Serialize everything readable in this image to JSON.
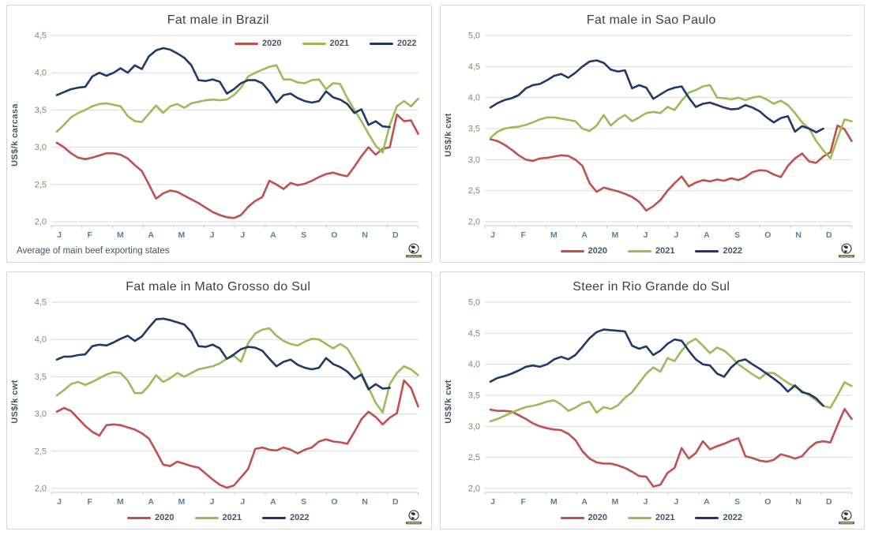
{
  "months": [
    "J",
    "F",
    "M",
    "A",
    "M",
    "J",
    "J",
    "A",
    "S",
    "O",
    "N",
    "D"
  ],
  "colors": {
    "red": "#c0504d",
    "green": "#9bbb59",
    "navy": "#1f3a68",
    "grid": "#d9d9d9",
    "axis": "#c9c9c9",
    "tick_label": "#9a7b70",
    "month_label": "#5f7d9c",
    "title": "#3f3f3f",
    "legend_text": "#44546a"
  },
  "icons": {
    "logo": "globe-logo"
  },
  "chart_data": [
    {
      "type": "line",
      "title": "Fat male in Brazil",
      "ylabel": "US$/k carcasa",
      "ylim": [
        2.0,
        4.5
      ],
      "yticks": [
        2.0,
        2.5,
        3.0,
        3.5,
        4.0,
        4.5
      ],
      "grid": "horizontal",
      "legend_position": "top-right-inside",
      "footnote": "Average  of main beef exporting states",
      "series": [
        {
          "name": "2020",
          "color_key": "red",
          "values": [
            3.06,
            3.0,
            2.92,
            2.86,
            2.84,
            2.86,
            2.89,
            2.92,
            2.92,
            2.9,
            2.85,
            2.76,
            2.68,
            2.5,
            2.31,
            2.38,
            2.42,
            2.4,
            2.35,
            2.3,
            2.25,
            2.19,
            2.13,
            2.09,
            2.06,
            2.05,
            2.09,
            2.2,
            2.28,
            2.33,
            2.55,
            2.5,
            2.44,
            2.52,
            2.49,
            2.51,
            2.55,
            2.6,
            2.64,
            2.66,
            2.63,
            2.61,
            2.74,
            2.88,
            3.0,
            2.9,
            2.98,
            3.0,
            3.44,
            3.35,
            3.36,
            3.18
          ]
        },
        {
          "name": "2021",
          "color_key": "green",
          "values": [
            3.21,
            3.3,
            3.4,
            3.46,
            3.5,
            3.55,
            3.58,
            3.59,
            3.57,
            3.55,
            3.42,
            3.35,
            3.34,
            3.45,
            3.56,
            3.46,
            3.55,
            3.58,
            3.53,
            3.59,
            3.61,
            3.63,
            3.64,
            3.63,
            3.64,
            3.7,
            3.8,
            3.95,
            4.0,
            4.04,
            4.08,
            4.1,
            3.91,
            3.91,
            3.87,
            3.86,
            3.9,
            3.91,
            3.78,
            3.86,
            3.85,
            3.66,
            3.5,
            3.35,
            3.18,
            3.02,
            2.93,
            3.3,
            3.55,
            3.62,
            3.55,
            3.65
          ]
        },
        {
          "name": "2022",
          "color_key": "navy",
          "values": [
            3.7,
            3.74,
            3.78,
            3.8,
            3.81,
            3.95,
            4.0,
            3.96,
            4.0,
            4.06,
            4.0,
            4.1,
            4.05,
            4.22,
            4.3,
            4.33,
            4.31,
            4.26,
            4.2,
            4.1,
            3.9,
            3.89,
            3.91,
            3.88,
            3.72,
            3.78,
            3.86,
            3.9,
            3.9,
            3.86,
            3.75,
            3.6,
            3.7,
            3.72,
            3.66,
            3.62,
            3.6,
            3.62,
            3.75,
            3.67,
            3.64,
            3.58,
            3.46,
            3.51,
            3.3,
            3.35,
            3.28,
            3.27
          ]
        }
      ]
    },
    {
      "type": "line",
      "title": "Fat male in Sao Paulo",
      "ylabel": "US$/k cwt",
      "ylim": [
        2.0,
        5.0
      ],
      "yticks": [
        2.0,
        2.5,
        3.0,
        3.5,
        4.0,
        4.5,
        5.0
      ],
      "grid": "horizontal",
      "legend_position": "bottom",
      "series": [
        {
          "name": "2020",
          "color_key": "red",
          "values": [
            3.33,
            3.3,
            3.24,
            3.16,
            3.07,
            3.0,
            2.98,
            3.02,
            3.03,
            3.05,
            3.07,
            3.06,
            3.0,
            2.9,
            2.62,
            2.48,
            2.55,
            2.52,
            2.49,
            2.45,
            2.4,
            2.32,
            2.18,
            2.25,
            2.35,
            2.5,
            2.62,
            2.73,
            2.57,
            2.63,
            2.67,
            2.65,
            2.68,
            2.66,
            2.7,
            2.67,
            2.72,
            2.8,
            2.83,
            2.82,
            2.76,
            2.72,
            2.9,
            3.02,
            3.1,
            2.97,
            2.95,
            3.05,
            3.12,
            3.55,
            3.49,
            3.3
          ]
        },
        {
          "name": "2021",
          "color_key": "green",
          "values": [
            3.35,
            3.45,
            3.5,
            3.52,
            3.53,
            3.56,
            3.6,
            3.65,
            3.68,
            3.68,
            3.66,
            3.64,
            3.62,
            3.5,
            3.46,
            3.55,
            3.72,
            3.55,
            3.65,
            3.72,
            3.62,
            3.68,
            3.75,
            3.77,
            3.75,
            3.85,
            3.8,
            3.95,
            4.08,
            4.12,
            4.18,
            4.2,
            4.0,
            3.99,
            3.97,
            4.0,
            3.96,
            4.0,
            4.02,
            3.97,
            3.9,
            3.95,
            3.88,
            3.75,
            3.6,
            3.5,
            3.3,
            3.15,
            3.02,
            3.35,
            3.65,
            3.62
          ]
        },
        {
          "name": "2022",
          "color_key": "navy",
          "values": [
            3.84,
            3.91,
            3.96,
            3.99,
            4.04,
            4.15,
            4.2,
            4.22,
            4.28,
            4.35,
            4.38,
            4.32,
            4.4,
            4.5,
            4.58,
            4.6,
            4.56,
            4.45,
            4.42,
            4.44,
            4.15,
            4.2,
            4.16,
            3.98,
            4.05,
            4.12,
            4.16,
            4.18,
            4.0,
            3.85,
            3.9,
            3.92,
            3.88,
            3.84,
            3.81,
            3.82,
            3.88,
            3.84,
            3.78,
            3.68,
            3.6,
            3.67,
            3.7,
            3.45,
            3.54,
            3.5,
            3.44,
            3.5
          ]
        }
      ]
    },
    {
      "type": "line",
      "title": "Fat male in Mato Grosso do Sul",
      "ylabel": "US$/k cwt",
      "ylim": [
        2.0,
        4.5
      ],
      "yticks": [
        2.0,
        2.5,
        3.0,
        3.5,
        4.0,
        4.5
      ],
      "grid": "horizontal",
      "legend_position": "bottom",
      "series": [
        {
          "name": "2020",
          "color_key": "red",
          "values": [
            3.03,
            3.08,
            3.04,
            2.94,
            2.84,
            2.76,
            2.71,
            2.85,
            2.86,
            2.85,
            2.82,
            2.79,
            2.74,
            2.67,
            2.5,
            2.32,
            2.3,
            2.36,
            2.33,
            2.3,
            2.28,
            2.2,
            2.12,
            2.05,
            2.01,
            2.04,
            2.15,
            2.26,
            2.53,
            2.55,
            2.52,
            2.51,
            2.55,
            2.52,
            2.47,
            2.52,
            2.55,
            2.63,
            2.66,
            2.63,
            2.62,
            2.6,
            2.76,
            2.93,
            3.03,
            2.96,
            2.86,
            2.95,
            3.01,
            3.45,
            3.35,
            3.1
          ]
        },
        {
          "name": "2021",
          "color_key": "green",
          "values": [
            3.25,
            3.32,
            3.4,
            3.43,
            3.39,
            3.43,
            3.48,
            3.53,
            3.56,
            3.55,
            3.45,
            3.28,
            3.28,
            3.38,
            3.52,
            3.43,
            3.48,
            3.55,
            3.5,
            3.55,
            3.6,
            3.62,
            3.64,
            3.68,
            3.74,
            3.78,
            3.7,
            3.95,
            4.08,
            4.13,
            4.15,
            4.05,
            3.98,
            3.94,
            3.92,
            3.97,
            4.01,
            4.0,
            3.94,
            3.88,
            3.94,
            3.88,
            3.72,
            3.55,
            3.35,
            3.15,
            3.02,
            3.4,
            3.55,
            3.64,
            3.6,
            3.52
          ]
        },
        {
          "name": "2022",
          "color_key": "navy",
          "values": [
            3.73,
            3.77,
            3.77,
            3.79,
            3.8,
            3.91,
            3.93,
            3.92,
            3.96,
            4.01,
            4.05,
            3.98,
            4.04,
            4.16,
            4.27,
            4.28,
            4.26,
            4.23,
            4.2,
            4.1,
            3.91,
            3.9,
            3.93,
            3.88,
            3.74,
            3.8,
            3.87,
            3.9,
            3.89,
            3.85,
            3.74,
            3.64,
            3.7,
            3.73,
            3.66,
            3.62,
            3.6,
            3.62,
            3.75,
            3.67,
            3.63,
            3.57,
            3.47,
            3.53,
            3.33,
            3.4,
            3.34,
            3.35
          ]
        }
      ]
    },
    {
      "type": "line",
      "title": "Steer  in Rio Grande do Sul",
      "ylabel": "US$/k cwt",
      "ylim": [
        2.0,
        5.0
      ],
      "yticks": [
        2.0,
        2.5,
        3.0,
        3.5,
        4.0,
        4.5,
        5.0
      ],
      "grid": "horizontal",
      "legend_position": "bottom",
      "series": [
        {
          "name": "2020",
          "color_key": "red",
          "values": [
            3.27,
            3.25,
            3.25,
            3.24,
            3.18,
            3.12,
            3.05,
            3.0,
            2.97,
            2.95,
            2.94,
            2.88,
            2.78,
            2.6,
            2.48,
            2.42,
            2.4,
            2.4,
            2.37,
            2.33,
            2.27,
            2.2,
            2.19,
            2.03,
            2.06,
            2.25,
            2.33,
            2.65,
            2.48,
            2.57,
            2.76,
            2.63,
            2.68,
            2.72,
            2.77,
            2.81,
            2.52,
            2.49,
            2.45,
            2.43,
            2.46,
            2.55,
            2.52,
            2.48,
            2.52,
            2.65,
            2.74,
            2.76,
            2.74,
            3.02,
            3.28,
            3.12
          ]
        },
        {
          "name": "2021",
          "color_key": "green",
          "values": [
            3.08,
            3.12,
            3.17,
            3.22,
            3.27,
            3.31,
            3.33,
            3.36,
            3.4,
            3.42,
            3.35,
            3.25,
            3.3,
            3.37,
            3.4,
            3.22,
            3.31,
            3.28,
            3.34,
            3.46,
            3.55,
            3.7,
            3.85,
            3.95,
            3.88,
            4.1,
            4.05,
            4.22,
            4.35,
            4.41,
            4.3,
            4.18,
            4.27,
            4.22,
            4.12,
            4.0,
            3.92,
            3.84,
            3.77,
            3.86,
            3.86,
            3.78,
            3.7,
            3.64,
            3.57,
            3.5,
            3.42,
            3.33,
            3.3,
            3.5,
            3.71,
            3.65
          ]
        },
        {
          "name": "2022",
          "color_key": "navy",
          "values": [
            3.72,
            3.78,
            3.81,
            3.85,
            3.9,
            3.96,
            3.98,
            3.96,
            4.0,
            4.08,
            4.12,
            4.08,
            4.15,
            4.28,
            4.42,
            4.52,
            4.56,
            4.55,
            4.54,
            4.53,
            4.3,
            4.25,
            4.29,
            4.15,
            4.22,
            4.33,
            4.4,
            4.38,
            4.22,
            4.08,
            4.0,
            3.98,
            3.85,
            3.8,
            3.95,
            4.05,
            4.08,
            4.0,
            3.93,
            3.85,
            3.77,
            3.68,
            3.56,
            3.66,
            3.55,
            3.52,
            3.45,
            3.33
          ]
        }
      ]
    }
  ]
}
